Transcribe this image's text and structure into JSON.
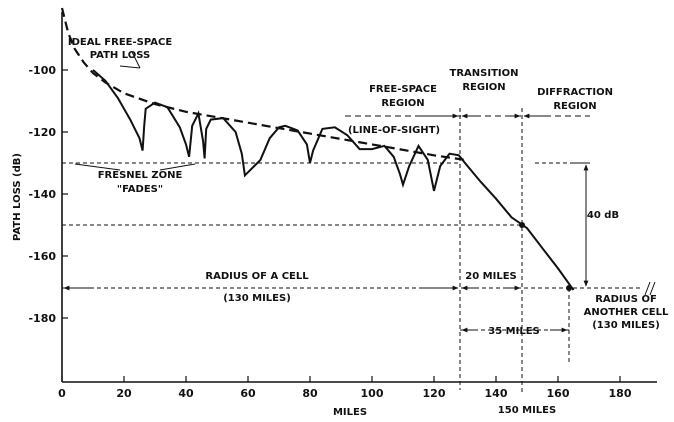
{
  "chart_data": {
    "type": "line",
    "xlabel": "MILES",
    "ylabel": "PATH LOSS (dB)",
    "xlim": [
      0,
      190
    ],
    "ylim": [
      -195,
      -77
    ],
    "x_ticks": [
      0,
      20,
      40,
      60,
      80,
      100,
      120,
      140,
      160,
      180
    ],
    "y_ticks": [
      -100,
      -120,
      -140,
      -160,
      -180
    ],
    "grid": false,
    "series": [
      {
        "name": "IDEAL FREE-SPACE PATH LOSS",
        "style": "dashed",
        "x": [
          0,
          2,
          4,
          7,
          10,
          14,
          20,
          30,
          40,
          60,
          80,
          100,
          120,
          130
        ],
        "y": [
          -80,
          -88,
          -93,
          -97.5,
          -101,
          -104,
          -107.5,
          -111,
          -113.5,
          -117,
          -120.5,
          -124,
          -127.5,
          -129
        ]
      },
      {
        "name": "",
        "style": "solid",
        "x": [
          10,
          14,
          18,
          22,
          25,
          26,
          26.5,
          27,
          30,
          34,
          38,
          40,
          41,
          42,
          44,
          45.5,
          46,
          46.5,
          48,
          52,
          56,
          58,
          59,
          61,
          64,
          67,
          70,
          72,
          76,
          79,
          80,
          81,
          84,
          88,
          92,
          96,
          100,
          104,
          107,
          109,
          110,
          112,
          115,
          118,
          119,
          120,
          122,
          125,
          128,
          130,
          135,
          140,
          145,
          150,
          155,
          160,
          165
        ],
        "y": [
          -100,
          -103.5,
          -109,
          -116,
          -122,
          -126,
          -118,
          -112.5,
          -110.5,
          -112,
          -118.5,
          -124,
          -128,
          -118,
          -114,
          -123,
          -128.5,
          -119,
          -116,
          -115.5,
          -120,
          -127,
          -134,
          -132,
          -129,
          -122,
          -118.5,
          -118,
          -119.5,
          -124,
          -130,
          -126,
          -119,
          -118.5,
          -121,
          -125.5,
          -125.5,
          -124.5,
          -128,
          -133.5,
          -137,
          -131,
          -124.5,
          -129,
          -134,
          -139,
          -131,
          -127,
          -127.5,
          -130,
          -136,
          -141.5,
          -147.5,
          -151,
          -157.5,
          -164,
          -171
        ]
      }
    ],
    "annotations": {
      "ideal_line1": "IDEAL FREE-SPACE",
      "ideal_line2": "PATH LOSS",
      "free_line1": "FREE-SPACE",
      "free_line2": "REGION",
      "los": "(LINE-OF-SIGHT)",
      "trans_line1": "TRANSITION",
      "trans_line2": "REGION",
      "diff_line1": "DIFFRACTION",
      "diff_line2": "REGION",
      "fresnel_line1": "FRESNEL ZONE",
      "fresnel_line2": "\"FADES\"",
      "db40": "40 dB",
      "radius_line1": "RADIUS OF A CELL",
      "radius_line2": "(130 MILES)",
      "miles20": "20 MILES",
      "miles35": "35 MILES",
      "another_line1": "RADIUS OF",
      "another_line2": "ANOTHER CELL",
      "another_line3": "(130 MILES)",
      "miles150": "150 MILES"
    }
  }
}
